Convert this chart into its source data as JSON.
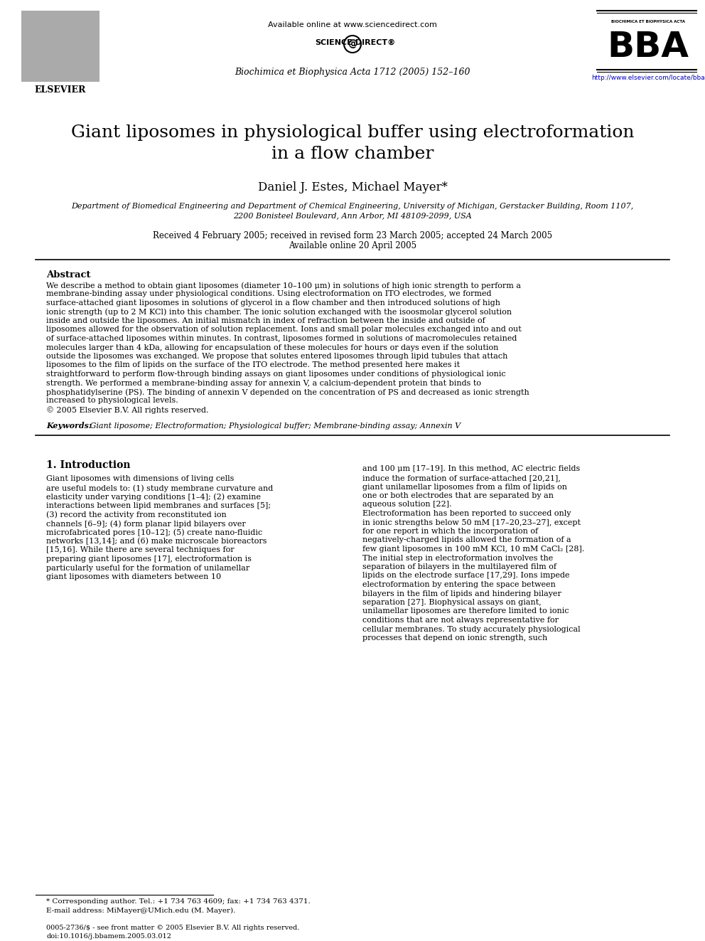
{
  "bg_color": "#ffffff",
  "title_line1": "Giant liposomes in physiological buffer using electroformation",
  "title_line2": "in a flow chamber",
  "authors": "Daniel J. Estes, Michael Mayer*",
  "affiliation1": "Department of Biomedical Engineering and Department of Chemical Engineering, University of Michigan, Gerstacker Building, Room 1107,",
  "affiliation2": "2200 Bonisteel Boulevard, Ann Arbor, MI 48109-2099, USA",
  "dates": "Received 4 February 2005; received in revised form 23 March 2005; accepted 24 March 2005",
  "online": "Available online 20 April 2005",
  "journal_header": "Biochimica et Biophysica Acta 1712 (2005) 152–160",
  "available_online": "Available online at www.sciencedirect.com",
  "url": "http://www.elsevier.com/locate/bba",
  "issn": "0005-2736/$ - see front matter © 2005 Elsevier B.V. All rights reserved.",
  "doi": "doi:10.1016/j.bbamem.2005.03.012",
  "abstract_title": "Abstract",
  "abstract_text": "We describe a method to obtain giant liposomes (diameter 10–100 μm) in solutions of high ionic strength to perform a membrane-binding assay under physiological conditions. Using electroformation on ITO electrodes, we formed surface-attached giant liposomes in solutions of glycerol in a flow chamber and then introduced solutions of high ionic strength (up to 2 M KCl) into this chamber. The ionic solution exchanged with the isoosmolar glycerol solution inside and outside the liposomes. An initial mismatch in index of refraction between the inside and outside of liposomes allowed for the observation of solution replacement. Ions and small polar molecules exchanged into and out of surface-attached liposomes within minutes. In contrast, liposomes formed in solutions of macromolecules retained molecules larger than 4 kDa, allowing for encapsulation of these molecules for hours or days even if the solution outside the liposomes was exchanged. We propose that solutes entered liposomes through lipid tubules that attach liposomes to the film of lipids on the surface of the ITO electrode. The method presented here makes it straightforward to perform flow-through binding assays on giant liposomes under conditions of physiological ionic strength. We performed a membrane-binding assay for annexin V, a calcium-dependent protein that binds to phosphatidylserine (PS). The binding of annexin V depended on the concentration of PS and decreased as ionic strength increased to physiological levels.\n© 2005 Elsevier B.V. All rights reserved.",
  "keywords_label": "Keywords:",
  "keywords_text": " Giant liposome; Electroformation; Physiological buffer; Membrane-binding assay; Annexin V",
  "section1_title": "1. Introduction",
  "section1_col1": "    Giant liposomes with dimensions of living cells are useful models to: (1) study membrane curvature and elasticity under varying conditions [1–4]; (2) examine interactions between lipid membranes and surfaces [5]; (3) record the activity from reconstituted ion channels [6–9]; (4) form planar lipid bilayers over microfabricated pores [10–12]; (5) create nano-fluidic networks [13,14]; and (6) make microscale bioreactors [15,16]. While there are several techniques for preparing giant liposomes [17], electroformation is particularly useful for the formation of unilamellar giant liposomes with diameters between 10",
  "section1_col2": "and 100 μm [17–19]. In this method, AC electric fields induce the formation of surface-attached [20,21], giant unilamellar liposomes from a film of lipids on one or both electrodes that are separated by an aqueous solution [22].\n    Electroformation has been reported to succeed only in ionic strengths below 50 mM [17–20,23–27], except for one report in which the incorporation of negatively-charged lipids allowed the formation of a few giant liposomes in 100 mM KCl, 10 mM CaCl₂ [28]. The initial step in electroformation involves the separation of bilayers in the multilayered film of lipids on the electrode surface [17,29]. Ions impede electroformation by entering the space between bilayers in the film of lipids and hindering bilayer separation [27]. Biophysical assays on giant, unilamellar liposomes are therefore limited to ionic conditions that are not always representative for cellular membranes. To study accurately physiological processes that depend on ionic strength, such",
  "footnote_star": "* Corresponding author. Tel.: +1 734 763 4609; fax: +1 734 763 4371.",
  "footnote_email": "E-mail address: MiMayer@UMich.edu (M. Mayer).",
  "link_color": "#0000cc"
}
